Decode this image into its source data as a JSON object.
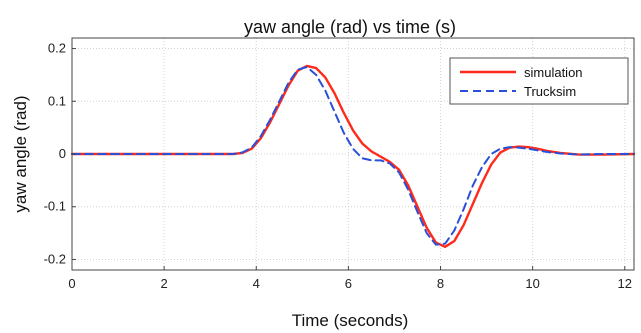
{
  "chart_data": {
    "type": "line",
    "title": "yaw angle (rad) vs time (s)",
    "xlabel": "Time (seconds)",
    "ylabel": "yaw angle (rad)",
    "xlim": [
      0,
      12.2
    ],
    "ylim": [
      -0.22,
      0.22
    ],
    "xticks": [
      0,
      2,
      4,
      6,
      8,
      10,
      12
    ],
    "xtick_labels": [
      "0",
      "2",
      "4",
      "6",
      "8",
      "10",
      "12"
    ],
    "yticks": [
      -0.2,
      -0.1,
      0,
      0.1,
      0.2
    ],
    "ytick_labels": [
      "-0.2",
      "-0.1",
      "0",
      "0.1",
      "0.2"
    ],
    "grid": true,
    "legend_position": "top-right",
    "series": [
      {
        "name": "simulation",
        "color": "#ff2a1a",
        "dash": "solid",
        "x": [
          0,
          3.5,
          3.7,
          3.9,
          4.1,
          4.3,
          4.5,
          4.7,
          4.9,
          5.1,
          5.3,
          5.5,
          5.7,
          5.9,
          6.1,
          6.3,
          6.5,
          6.7,
          6.9,
          7.1,
          7.3,
          7.5,
          7.7,
          7.9,
          8.1,
          8.3,
          8.5,
          8.7,
          8.9,
          9.1,
          9.3,
          9.5,
          9.7,
          9.9,
          10.1,
          10.3,
          10.6,
          11.0,
          11.5,
          12.2
        ],
        "y": [
          0,
          0,
          0.002,
          0.01,
          0.03,
          0.06,
          0.095,
          0.13,
          0.158,
          0.167,
          0.163,
          0.145,
          0.115,
          0.078,
          0.045,
          0.02,
          0.005,
          -0.005,
          -0.015,
          -0.03,
          -0.06,
          -0.1,
          -0.14,
          -0.168,
          -0.176,
          -0.165,
          -0.135,
          -0.095,
          -0.055,
          -0.02,
          0.003,
          0.012,
          0.014,
          0.013,
          0.01,
          0.006,
          0.002,
          -0.001,
          -0.001,
          0
        ]
      },
      {
        "name": "Trucksim",
        "color": "#2b4fd6",
        "dash": "dashed",
        "x": [
          0,
          3.5,
          3.7,
          3.9,
          4.1,
          4.3,
          4.5,
          4.7,
          4.9,
          5.1,
          5.3,
          5.5,
          5.7,
          5.9,
          6.1,
          6.3,
          6.5,
          6.7,
          6.9,
          7.1,
          7.3,
          7.5,
          7.7,
          7.9,
          8.1,
          8.3,
          8.5,
          8.7,
          8.9,
          9.1,
          9.3,
          9.5,
          9.7,
          9.9,
          10.1,
          10.3,
          10.6,
          11.0,
          11.5,
          12.2
        ],
        "y": [
          0,
          0,
          0.003,
          0.012,
          0.034,
          0.065,
          0.1,
          0.135,
          0.16,
          0.165,
          0.15,
          0.12,
          0.08,
          0.04,
          0.01,
          -0.008,
          -0.012,
          -0.012,
          -0.018,
          -0.035,
          -0.068,
          -0.11,
          -0.15,
          -0.172,
          -0.17,
          -0.145,
          -0.105,
          -0.06,
          -0.025,
          0.0,
          0.01,
          0.013,
          0.012,
          0.01,
          0.007,
          0.004,
          0.001,
          -0.001,
          0,
          0
        ]
      }
    ]
  }
}
